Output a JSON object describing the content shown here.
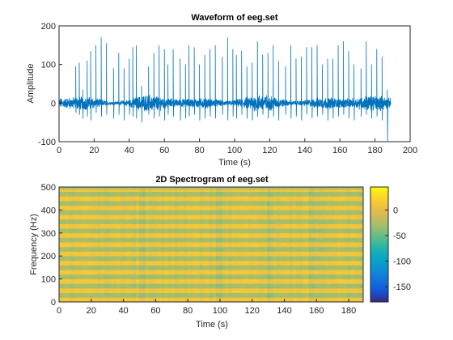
{
  "chart_data": [
    {
      "type": "line",
      "title": "Waveform of eeg.set",
      "xlabel": "Time (s)",
      "ylabel": "Amplitude",
      "xlim": [
        0,
        200
      ],
      "ylim": [
        -100,
        200
      ],
      "xticks": [
        0,
        20,
        40,
        60,
        80,
        100,
        120,
        140,
        160,
        180,
        200
      ],
      "yticks": [
        -100,
        0,
        100,
        200
      ],
      "grid": false,
      "line_color": "#0072BD",
      "signal": {
        "duration_s": 189,
        "baseline_noise_amplitude": 15,
        "spike_times_s": [
          9.5,
          11.5,
          13.5,
          16,
          18,
          21,
          24,
          27,
          31,
          34,
          37,
          40,
          42,
          44,
          47,
          51,
          54,
          57,
          60,
          62,
          65,
          69,
          72,
          74,
          77,
          80,
          83,
          86,
          89,
          93,
          96,
          99,
          101,
          104,
          107,
          110,
          113,
          116,
          119,
          122,
          125,
          129,
          132,
          135,
          138,
          141,
          144,
          147,
          150,
          153,
          156,
          159,
          162,
          165,
          168,
          172,
          175,
          178,
          181,
          184,
          187
        ],
        "spike_peaks": [
          95,
          105,
          35,
          110,
          135,
          150,
          170,
          155,
          90,
          130,
          90,
          115,
          145,
          150,
          45,
          95,
          130,
          150,
          140,
          100,
          140,
          115,
          100,
          150,
          145,
          100,
          125,
          140,
          150,
          120,
          170,
          140,
          125,
          135,
          95,
          105,
          160,
          125,
          130,
          150,
          110,
          95,
          150,
          115,
          120,
          145,
          145,
          150,
          100,
          115,
          115,
          150,
          160,
          135,
          100,
          90,
          160,
          100,
          140,
          120,
          35
        ],
        "spike_troughs": [
          -25,
          -30,
          -40,
          -35,
          -45,
          -25,
          -35,
          -30,
          -40,
          -30,
          -45,
          -30,
          -35,
          -40,
          -50,
          -30,
          -40,
          -35,
          -45,
          -30,
          -35,
          -45,
          -40,
          -35,
          -30,
          -45,
          -40,
          -35,
          -40,
          -30,
          -45,
          -35,
          -40,
          -30,
          -40,
          -45,
          -35,
          -30,
          -40,
          -35,
          -45,
          -30,
          -40,
          -35,
          -45,
          -30,
          -40,
          -35,
          -30,
          -45,
          -40,
          -35,
          -30,
          -40,
          -45,
          -35,
          -30,
          -40,
          -35,
          -45,
          -100
        ]
      }
    },
    {
      "type": "heatmap",
      "title": "2D Spectrogram of eeg.set",
      "xlabel": "Time (s)",
      "ylabel": "Frequency (Hz)",
      "xlim": [
        0,
        189
      ],
      "ylim": [
        0,
        500
      ],
      "xticks": [
        0,
        20,
        40,
        60,
        80,
        100,
        120,
        140,
        160,
        180
      ],
      "yticks": [
        0,
        100,
        200,
        300,
        400,
        500
      ],
      "colormap": "parula",
      "colorbar": {
        "clim": [
          -180,
          45
        ],
        "ticks": [
          0,
          -50,
          -100,
          -150
        ]
      },
      "cells": {
        "time_bins": 95,
        "freq_bins": 50,
        "band_period_bins": 2,
        "high_band_db": 10,
        "low_band_db": -30,
        "top_edge_db": -25,
        "dark_columns_s": [
          52,
          100,
          132,
          158,
          164
        ]
      }
    }
  ]
}
